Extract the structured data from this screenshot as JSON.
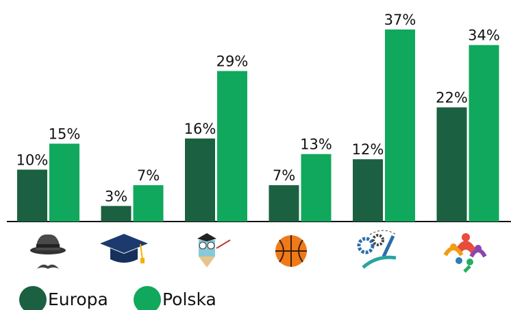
{
  "chart_data": {
    "type": "bar",
    "categories": [
      null,
      null,
      null,
      null,
      null,
      null
    ],
    "series": [
      {
        "name": "Europa",
        "color": "#1b6141",
        "values": [
          10,
          3,
          16,
          7,
          12,
          22
        ],
        "value_labels": [
          "10%",
          "3%",
          "16%",
          "7%",
          "12%",
          "22%"
        ]
      },
      {
        "name": "Polska",
        "color": "#10a85c",
        "values": [
          15,
          7,
          29,
          13,
          37,
          34
        ],
        "value_labels": [
          "15%",
          "7%",
          "29%",
          "13%",
          "37%",
          "34%"
        ]
      }
    ]
  }
}
